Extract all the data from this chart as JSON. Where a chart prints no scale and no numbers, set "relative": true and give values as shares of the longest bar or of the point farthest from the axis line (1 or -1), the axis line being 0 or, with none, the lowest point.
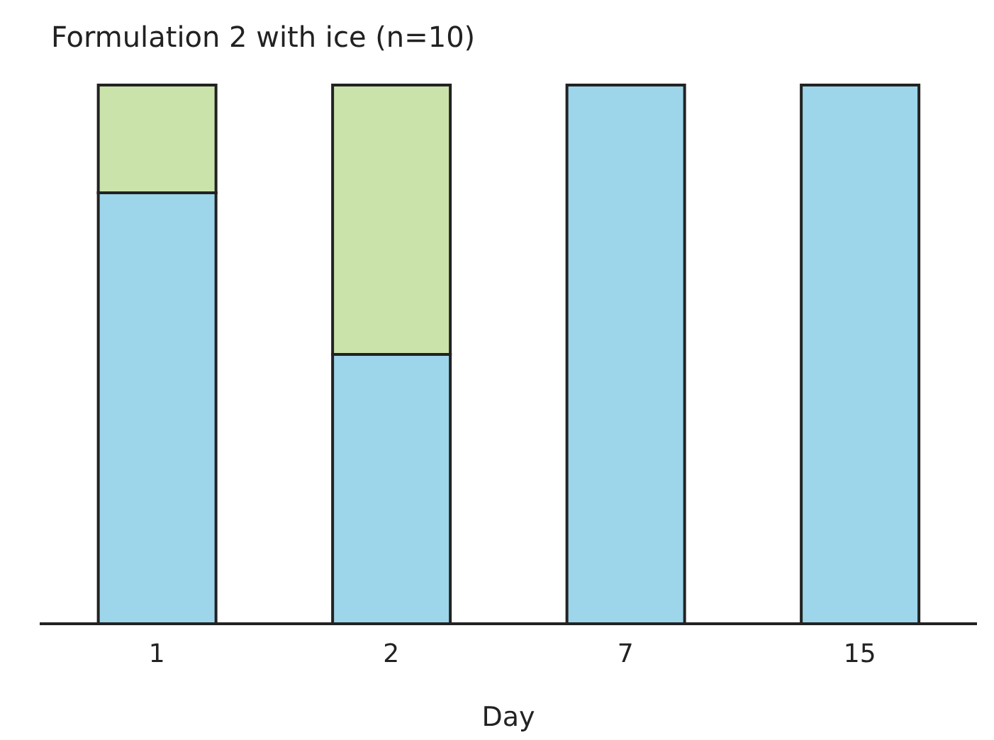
{
  "chart_data": {
    "type": "bar",
    "title": "Formulation 2 with ice (n=10)",
    "xlabel": "Day",
    "categories": [
      "1",
      "2",
      "7",
      "15"
    ],
    "stacked": true,
    "relative": true,
    "grid": false,
    "legend": false,
    "series": [
      {
        "color": "#9dd5ea",
        "values": [
          0.8,
          0.5,
          1,
          1
        ]
      },
      {
        "color": "#cae3aa",
        "values": [
          0.2,
          0.5,
          0,
          0
        ]
      }
    ]
  }
}
